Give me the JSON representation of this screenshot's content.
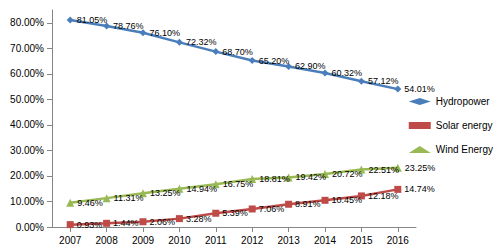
{
  "chart_data": {
    "type": "line",
    "categories": [
      "2007",
      "2008",
      "2009",
      "2010",
      "2011",
      "2012",
      "2013",
      "2014",
      "2015",
      "2016"
    ],
    "series": [
      {
        "name": "Hydropower",
        "color": "#4a7ebb",
        "marker": "diamond",
        "values": [
          81.05,
          78.76,
          76.1,
          72.32,
          68.7,
          65.2,
          62.9,
          60.32,
          57.12,
          54.01
        ],
        "value_labels": [
          "81.05%",
          "78.76%",
          "76.10%",
          "72.32%",
          "68.70%",
          "65.20%",
          "62.90%",
          "60.32%",
          "57.12%",
          "54.01%"
        ]
      },
      {
        "name": "Solar energy",
        "color": "#be4b48",
        "marker": "square",
        "values": [
          0.93,
          1.44,
          2.06,
          3.28,
          5.39,
          7.06,
          8.91,
          10.45,
          12.18,
          14.74
        ],
        "value_labels": [
          "0.93%",
          "1.44%",
          "2.06%",
          "3.28%",
          "5.39%",
          "7.06%",
          "8.91%",
          "10.45%",
          "12.18%",
          "14.74%"
        ]
      },
      {
        "name": "Wind Energy",
        "color": "#98b954",
        "marker": "triangle",
        "values": [
          9.46,
          11.31,
          13.25,
          14.94,
          16.75,
          18.81,
          19.42,
          20.72,
          22.51,
          23.25
        ],
        "value_labels": [
          "9.46%",
          "11.31%",
          "13.25%",
          "14.94%",
          "16.75%",
          "18.81%",
          "19.42%",
          "20.72%",
          "22.51%",
          "23.25%"
        ]
      }
    ],
    "ylim": [
      0,
      85
    ],
    "yticks": [
      {
        "value": 0,
        "label": "0.00%"
      },
      {
        "value": 10,
        "label": "10.00%"
      },
      {
        "value": 20,
        "label": "20.00%"
      },
      {
        "value": 30,
        "label": "30.00%"
      },
      {
        "value": 40,
        "label": "40.00%"
      },
      {
        "value": 50,
        "label": "50.00%"
      },
      {
        "value": 60,
        "label": "60.00%"
      },
      {
        "value": 70,
        "label": "70.00%"
      },
      {
        "value": 80,
        "label": "80.00%"
      }
    ],
    "grid": false,
    "legend": "right",
    "data_labels": true
  }
}
